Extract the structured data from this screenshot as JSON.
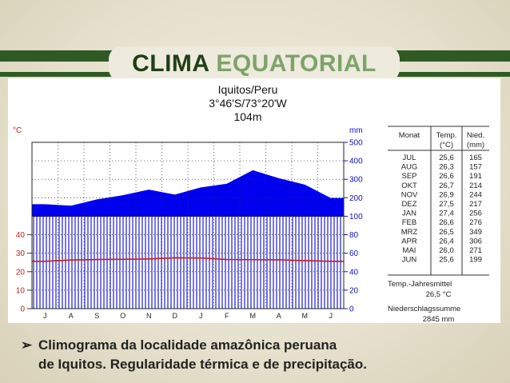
{
  "slide": {
    "title_part1": "CLIMA",
    "title_part2": "EQUATORIAL",
    "bullet_symbol": "➢",
    "bullet_line1": "Climograma da localidade amazônica peruana",
    "bullet_line2": "de Iquitos. Regularidade térmica e de precipitação."
  },
  "chart_data": {
    "type": "area",
    "title": "Iquitos/Peru",
    "subtitle": "3°46'S/73°20'W",
    "altitude": "104m",
    "left_unit": "°C",
    "right_unit": "mm",
    "categories": [
      "J",
      "A",
      "S",
      "O",
      "N",
      "D",
      "J",
      "F",
      "M",
      "A",
      "M",
      "J"
    ],
    "left_ticks": [
      "0",
      "10",
      "20",
      "30",
      "40"
    ],
    "right_ticks": [
      "0",
      "20",
      "40",
      "60",
      "80",
      "100",
      "200",
      "300",
      "400",
      "500"
    ],
    "series": [
      {
        "name": "Temp.",
        "values": [
          25.6,
          26.3,
          26.6,
          26.7,
          26.9,
          27.5,
          27.4,
          26.6,
          26.5,
          26.4,
          26.0,
          25.6
        ],
        "color": "#d01818"
      },
      {
        "name": "Nied.",
        "values": [
          165,
          157,
          191,
          214,
          244,
          217,
          256,
          276,
          349,
          306,
          271,
          199
        ],
        "color": "#0000ee"
      }
    ],
    "table": {
      "headers": [
        "Monat",
        "Temp.",
        "Nied."
      ],
      "subheaders": [
        "",
        "(°C)",
        "(mm)"
      ],
      "rows": [
        [
          "JUL",
          "25,6",
          "165"
        ],
        [
          "AUG",
          "26,3",
          "157"
        ],
        [
          "SEP",
          "26,6",
          "191"
        ],
        [
          "OKT",
          "26,7",
          "214"
        ],
        [
          "NOV",
          "26,9",
          "244"
        ],
        [
          "DEZ",
          "27,5",
          "217"
        ],
        [
          "JAN",
          "27,4",
          "256"
        ],
        [
          "FEB",
          "26,6",
          "276"
        ],
        [
          "MRZ",
          "26,5",
          "349"
        ],
        [
          "APR",
          "26,4",
          "306"
        ],
        [
          "MAI",
          "26,0",
          "271"
        ],
        [
          "JUN",
          "25,6",
          "199"
        ]
      ],
      "annual_temp_label": "Temp.-Jahresmittel",
      "annual_temp_value": "26,5 °C",
      "annual_precip_label": "Niederschlagssumme",
      "annual_precip_value": "2845 mm"
    }
  }
}
